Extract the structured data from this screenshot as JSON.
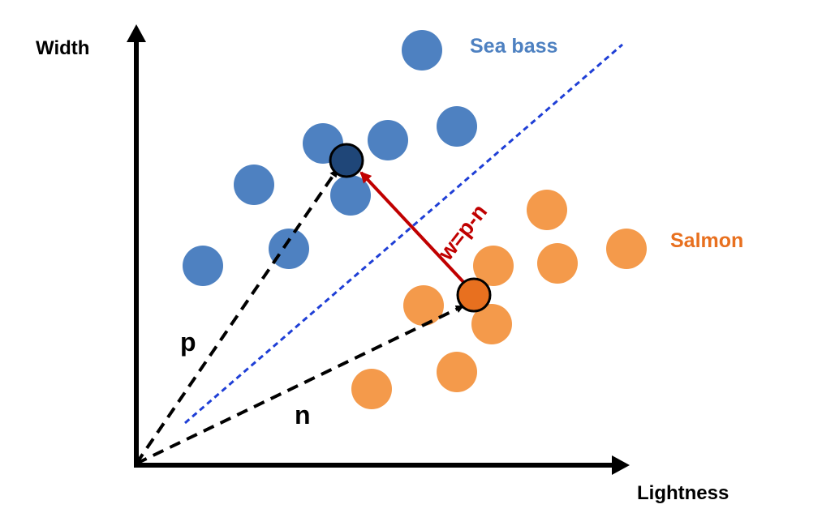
{
  "axes": {
    "x_label": "Lightness",
    "y_label": "Width"
  },
  "classes": {
    "sea_bass": {
      "label": "Sea bass",
      "color": "#4e81c1",
      "highlight_color": "#1f4678"
    },
    "salmon": {
      "label": "Salmon",
      "color": "#f49a4b",
      "highlight_color": "#e8701f"
    }
  },
  "vectors": {
    "p_label": "p",
    "n_label": "n",
    "w_label": "w=p-n",
    "w_color": "#c00000",
    "boundary_color": "#1f3fd6"
  }
}
